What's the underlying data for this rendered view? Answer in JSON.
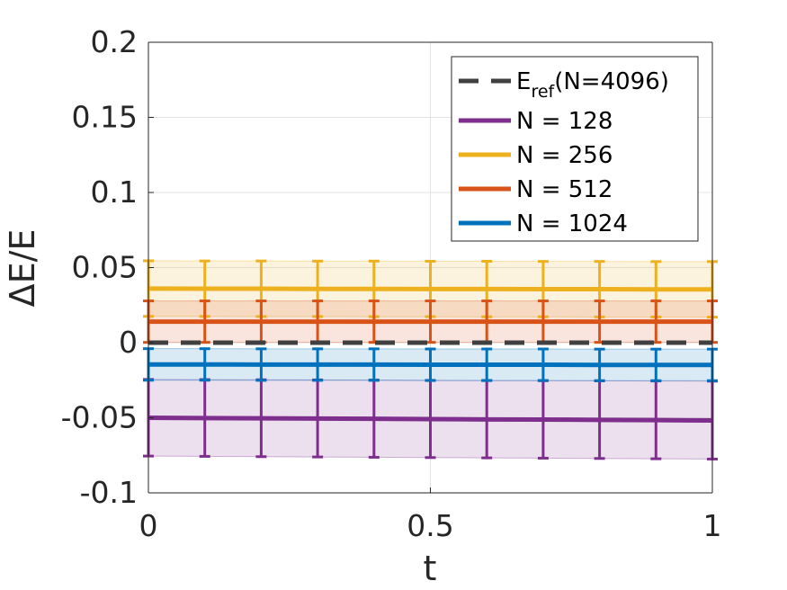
{
  "chart_data": {
    "type": "line",
    "xlabel": "t",
    "ylabel": "ΔE/E",
    "xlim": [
      0,
      1
    ],
    "ylim": [
      -0.1,
      0.2
    ],
    "xticks": [
      "0",
      "0.5",
      "1"
    ],
    "yticks": [
      "-0.1",
      "-0.05",
      "0",
      "0.05",
      "0.1",
      "0.15",
      "0.2"
    ],
    "grid": true,
    "legend_position": "top-right",
    "x": [
      0,
      0.1,
      0.2,
      0.3,
      0.4,
      0.5,
      0.6,
      0.7,
      0.8,
      0.9,
      1.0
    ],
    "reference": {
      "label_main": "E",
      "label_sub": "ref",
      "label_tail": "(N=4096)",
      "value": 0,
      "color": "#404040",
      "style": "dashed"
    },
    "series": [
      {
        "name": "N = 128",
        "color": "#7E2F8E",
        "values": [
          -0.05,
          -0.0502,
          -0.0504,
          -0.0505,
          -0.0507,
          -0.0509,
          -0.0511,
          -0.0512,
          -0.0514,
          -0.0516,
          -0.0518
        ],
        "lower": [
          -0.0755,
          -0.0757,
          -0.0759,
          -0.0761,
          -0.0763,
          -0.0765,
          -0.0767,
          -0.0769,
          -0.0771,
          -0.0773,
          -0.0775
        ],
        "upper": [
          -0.0245,
          -0.0246,
          -0.0247,
          -0.0248,
          -0.0249,
          -0.0251,
          -0.0252,
          -0.0253,
          -0.0254,
          -0.0255,
          -0.0256
        ]
      },
      {
        "name": "N = 256",
        "color": "#EDB120",
        "values": [
          0.036,
          0.0359,
          0.0359,
          0.0358,
          0.0358,
          0.0357,
          0.0357,
          0.0356,
          0.0356,
          0.0355,
          0.0355
        ],
        "lower": [
          0.0175,
          0.0175,
          0.0174,
          0.0174,
          0.0173,
          0.0173,
          0.0172,
          0.0172,
          0.0171,
          0.0171,
          0.017
        ],
        "upper": [
          0.0545,
          0.0544,
          0.0544,
          0.0543,
          0.0543,
          0.0542,
          0.0542,
          0.0541,
          0.0541,
          0.054,
          0.054
        ]
      },
      {
        "name": "N = 512",
        "color": "#D95319",
        "values": [
          0.014,
          0.014,
          0.014,
          0.014,
          0.014,
          0.014,
          0.014,
          0.014,
          0.014,
          0.014,
          0.014
        ],
        "lower": [
          0.0002,
          0.0002,
          0.0002,
          0.0002,
          0.0002,
          0.0002,
          0.0002,
          0.0002,
          0.0002,
          0.0002,
          0.0002
        ],
        "upper": [
          0.0278,
          0.0278,
          0.0278,
          0.0278,
          0.0278,
          0.0278,
          0.0278,
          0.0278,
          0.0278,
          0.0278,
          0.0278
        ]
      },
      {
        "name": "N = 1024",
        "color": "#0072BD",
        "values": [
          -0.0145,
          -0.0145,
          -0.0146,
          -0.0146,
          -0.0146,
          -0.0147,
          -0.0147,
          -0.0147,
          -0.0148,
          -0.0148,
          -0.0148
        ],
        "lower": [
          -0.025,
          -0.025,
          -0.0251,
          -0.0251,
          -0.0251,
          -0.0252,
          -0.0252,
          -0.0252,
          -0.0253,
          -0.0253,
          -0.0253
        ],
        "upper": [
          -0.004,
          -0.004,
          -0.0041,
          -0.0041,
          -0.0041,
          -0.0042,
          -0.0042,
          -0.0042,
          -0.0043,
          -0.0043,
          -0.0043
        ]
      }
    ]
  }
}
